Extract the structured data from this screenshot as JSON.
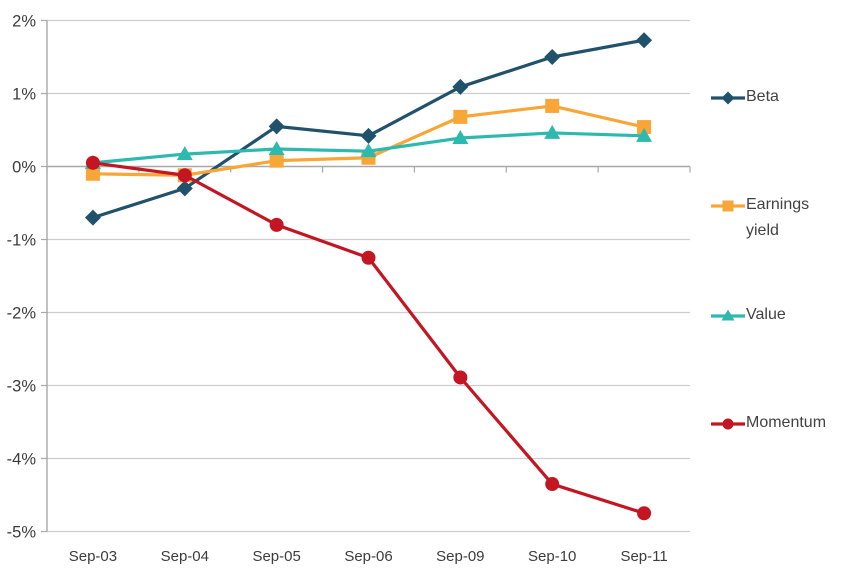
{
  "chart_data": {
    "type": "line",
    "title": "",
    "xlabel": "",
    "ylabel": "",
    "categories": [
      "Sep-03",
      "Sep-04",
      "Sep-05",
      "Sep-06",
      "Sep-09",
      "Sep-10",
      "Sep-11"
    ],
    "series": [
      {
        "id": "beta",
        "name": "Beta",
        "marker": "diamond",
        "color": "#21526B",
        "values": [
          -0.7,
          -0.3,
          0.55,
          0.42,
          1.09,
          1.5,
          1.73
        ]
      },
      {
        "id": "earnings-yield",
        "name": "Earnings yield",
        "marker": "square",
        "color": "#F7A637",
        "values": [
          -0.1,
          -0.12,
          0.08,
          0.12,
          0.68,
          0.83,
          0.54
        ]
      },
      {
        "id": "value",
        "name": "Value",
        "marker": "triangle",
        "color": "#2EB9AF",
        "values": [
          0.05,
          0.17,
          0.24,
          0.21,
          0.39,
          0.46,
          0.42
        ]
      },
      {
        "id": "momentum",
        "name": "Momentum",
        "marker": "circle",
        "color": "#C31622",
        "values": [
          0.05,
          -0.12,
          -0.8,
          -1.25,
          -2.89,
          -4.35,
          -4.75
        ]
      }
    ],
    "y_ticks": [
      {
        "value": 2,
        "label": "2%"
      },
      {
        "value": 1,
        "label": "1%"
      },
      {
        "value": 0,
        "label": "0%"
      },
      {
        "value": -1,
        "label": "-1%"
      },
      {
        "value": -2,
        "label": "-2%"
      },
      {
        "value": -3,
        "label": "-3%"
      },
      {
        "value": -4,
        "label": "-4%"
      },
      {
        "value": -5,
        "label": "-5%"
      }
    ],
    "ylim": [
      -5,
      2
    ],
    "grid": true,
    "x_axis_at_zero": true,
    "legend_position": "right",
    "colors": {
      "background": "#ffffff",
      "grid": "#CDCDCD",
      "axis": "#A8A8A8",
      "tick_label": "#3C3C3C",
      "legend_text": "#424242"
    }
  }
}
